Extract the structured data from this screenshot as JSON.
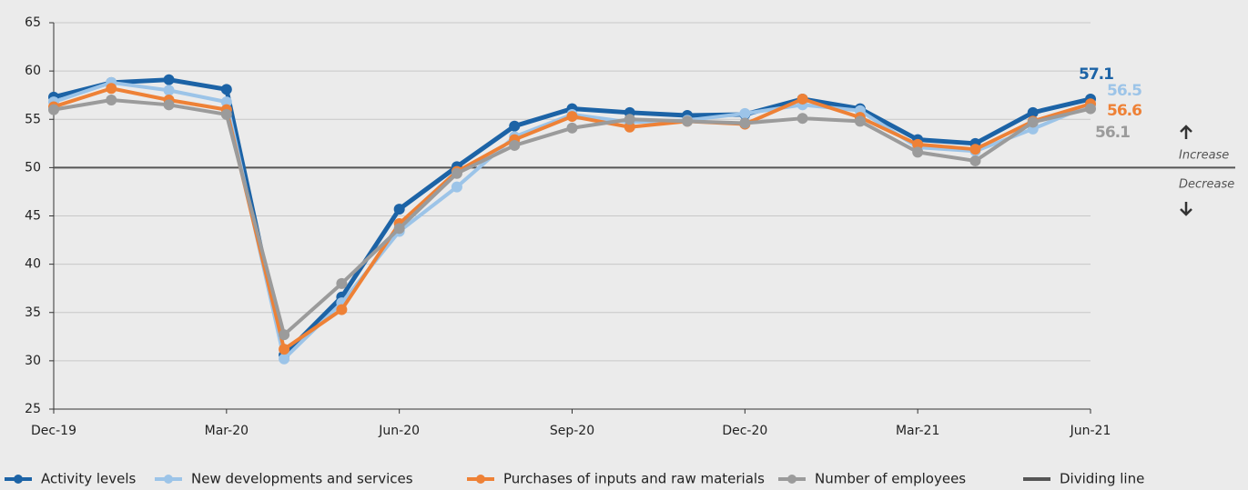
{
  "chart_data": {
    "type": "line",
    "categories": [
      "Dec-19",
      null,
      null,
      "Mar-20",
      null,
      null,
      "Jun-20",
      null,
      null,
      "Sep-20",
      null,
      null,
      "Dec-20",
      null,
      null,
      "Mar-21",
      null,
      null,
      "Jun-21"
    ],
    "series": [
      {
        "name": "Activity levels",
        "color": "#1c63a6",
        "values": [
          57.3,
          58.8,
          59.1,
          58.1,
          30.6,
          36.6,
          45.7,
          50.1,
          54.3,
          56.1,
          55.7,
          55.4,
          55.5,
          57.1,
          56.1,
          52.9,
          52.5,
          55.7,
          57.1
        ]
      },
      {
        "name": "New developments and services",
        "color": "#9cc4e8",
        "values": [
          56.8,
          58.8,
          58.0,
          56.8,
          30.2,
          36.0,
          43.4,
          48.0,
          53.2,
          55.5,
          54.7,
          54.9,
          55.6,
          56.5,
          55.9,
          52.1,
          51.7,
          54.0,
          56.5
        ]
      },
      {
        "name": "Purchases of inputs and raw materials",
        "color": "#ee8136",
        "values": [
          56.3,
          58.2,
          57.0,
          56.0,
          31.2,
          35.3,
          44.2,
          49.6,
          52.9,
          55.3,
          54.2,
          54.8,
          54.5,
          57.1,
          55.2,
          52.4,
          51.9,
          54.8,
          56.6
        ]
      },
      {
        "name": "Number of employees",
        "color": "#9b9b9b",
        "values": [
          56.0,
          57.0,
          56.5,
          55.5,
          32.7,
          38.0,
          43.7,
          49.4,
          52.3,
          54.1,
          55.0,
          54.8,
          54.6,
          55.1,
          54.8,
          51.6,
          50.7,
          54.7,
          56.1
        ]
      }
    ],
    "dividing_line": {
      "name": "Dividing line",
      "value": 50,
      "color": "#555555"
    },
    "annotations": [
      "Increase",
      "Decrease"
    ],
    "ylim": [
      25,
      65
    ],
    "yticks": [
      25,
      30,
      35,
      40,
      45,
      50,
      55,
      60,
      65
    ],
    "grid": true
  }
}
